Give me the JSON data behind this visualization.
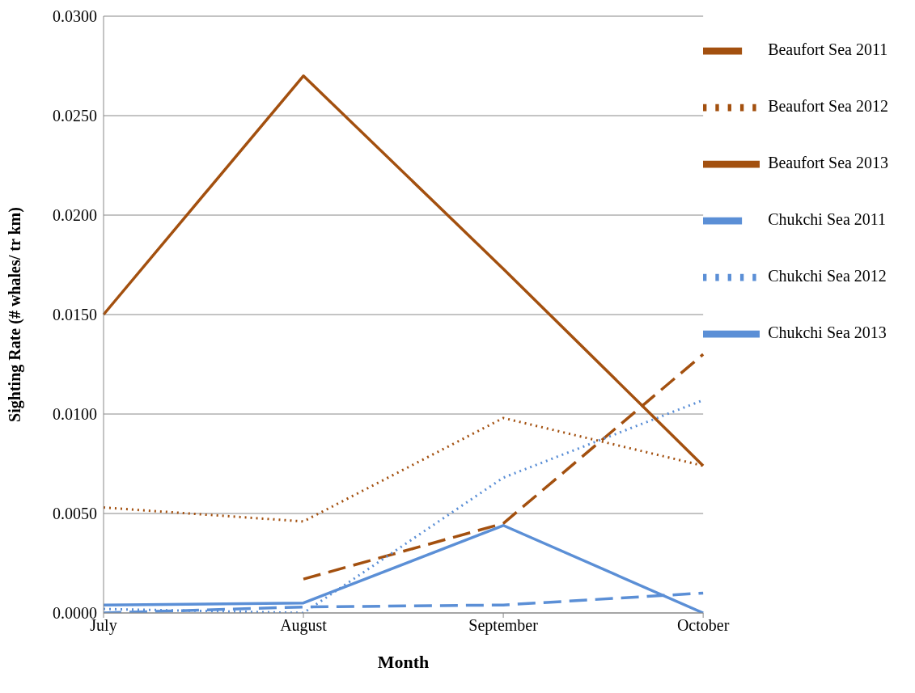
{
  "chart_data": {
    "type": "line",
    "xlabel": "Month",
    "ylabel": "Sighting Rate (# whales/ tr km)",
    "categories": [
      "July",
      "August",
      "September",
      "October"
    ],
    "series": [
      {
        "name": "Chukchi Sea 2011",
        "color": "#5b8fd6",
        "line_style": "dashed",
        "values": [
          0.0,
          0.0003,
          0.0004,
          0.001
        ]
      },
      {
        "name": "Beaufort Sea 2011",
        "color": "#a3500f",
        "line_style": "dashed",
        "values": [
          null,
          0.0017,
          0.0045,
          0.013
        ]
      },
      {
        "name": "Chukchi Sea 2012",
        "color": "#5b8fd6",
        "line_style": "dotted",
        "values": [
          0.0002,
          0.0,
          0.0068,
          0.0107
        ]
      },
      {
        "name": "Beaufort Sea 2012",
        "color": "#a3500f",
        "line_style": "dotted",
        "values": [
          0.0053,
          0.0046,
          0.0098,
          0.0074
        ]
      },
      {
        "name": "Chukchi Sea 2013",
        "color": "#5b8fd6",
        "line_style": "solid",
        "values": [
          0.0004,
          0.0005,
          0.0044,
          0.0
        ]
      },
      {
        "name": "Beaufort Sea 2013",
        "color": "#a3500f",
        "line_style": "solid",
        "values": [
          0.015,
          0.027,
          0.0173,
          0.0074
        ]
      }
    ],
    "ylim": [
      0,
      0.03
    ],
    "yticks": [
      {
        "value": 0,
        "label": "0.0000"
      },
      {
        "value": 0.005,
        "label": "0.0050"
      },
      {
        "value": 0.01,
        "label": "0.0100"
      },
      {
        "value": 0.015,
        "label": "0.0150"
      },
      {
        "value": 0.02,
        "label": "0.0200"
      },
      {
        "value": 0.025,
        "label": "0.0250"
      },
      {
        "value": 0.03,
        "label": "0.0300"
      }
    ],
    "grid": "y",
    "legend": "top right",
    "marker": "none"
  }
}
